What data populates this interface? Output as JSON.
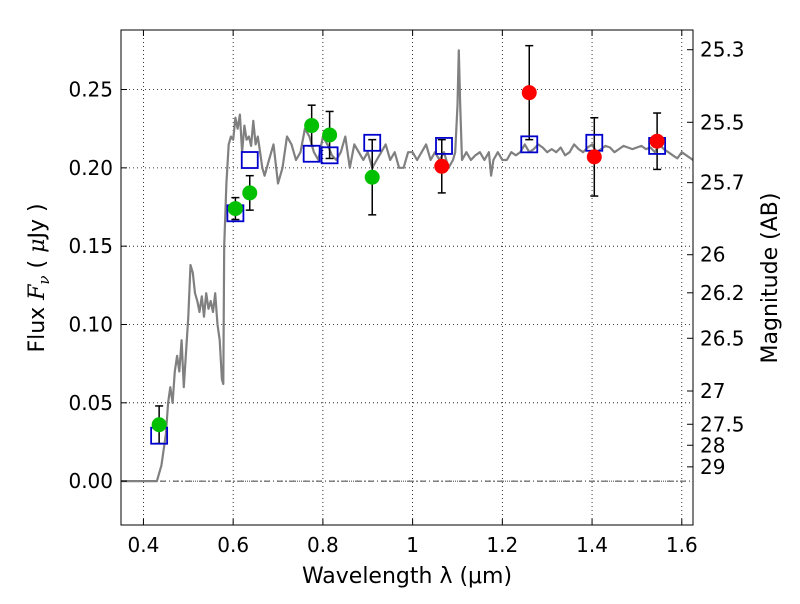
{
  "chart_data": {
    "type": "scatter",
    "title": "",
    "xlabel": "Wavelength  λ (μm)",
    "ylabel": "Flux  F_ν  ( μJy )",
    "ylabel_right": "Magnitude (AB)",
    "xlim": [
      0.35,
      1.625
    ],
    "ylim": [
      -0.028,
      0.288
    ],
    "grid": true,
    "x_ticks": [
      0.4,
      0.6,
      0.8,
      1.0,
      1.2,
      1.4,
      1.6
    ],
    "x_tick_labels": [
      "0.4",
      "0.6",
      "0.8",
      "1",
      "1.2",
      "1.4",
      "1.6"
    ],
    "y_ticks": [
      0.0,
      0.05,
      0.1,
      0.15,
      0.2,
      0.25
    ],
    "y_tick_labels": [
      "0.00",
      "0.05",
      "0.10",
      "0.15",
      "0.20",
      "0.25"
    ],
    "right_axis_ticks": [
      {
        "label": "25.3",
        "mag": 25.3
      },
      {
        "label": "25.5",
        "mag": 25.5
      },
      {
        "label": "25.7",
        "mag": 25.7
      },
      {
        "label": "26",
        "mag": 26.0
      },
      {
        "label": "26.2",
        "mag": 26.2
      },
      {
        "label": "26.5",
        "mag": 26.5
      },
      {
        "label": "27",
        "mag": 27.0
      },
      {
        "label": "27.5",
        "mag": 27.5
      },
      {
        "label": "28",
        "mag": 28.0
      },
      {
        "label": "29",
        "mag": 29.0
      }
    ],
    "colors": {
      "model": "#808080",
      "green": "#00c000",
      "red": "#ff0000",
      "square": "#0000cc",
      "error": "#000000"
    },
    "series": [
      {
        "kind": "line",
        "x": [
          0.35,
          0.43,
          0.44,
          0.45,
          0.455,
          0.46,
          0.465,
          0.47,
          0.475,
          0.48,
          0.485,
          0.49,
          0.5,
          0.505,
          0.51,
          0.515,
          0.52,
          0.525,
          0.53,
          0.535,
          0.54,
          0.545,
          0.55,
          0.555,
          0.56,
          0.565,
          0.57,
          0.575,
          0.578,
          0.58,
          0.585,
          0.59,
          0.595,
          0.6,
          0.605,
          0.61,
          0.615,
          0.62,
          0.625,
          0.63,
          0.635,
          0.64,
          0.645,
          0.65,
          0.655,
          0.66,
          0.665,
          0.67,
          0.68,
          0.69,
          0.7,
          0.71,
          0.72,
          0.73,
          0.74,
          0.75,
          0.76,
          0.77,
          0.78,
          0.79,
          0.8,
          0.81,
          0.82,
          0.83,
          0.84,
          0.85,
          0.86,
          0.87,
          0.88,
          0.89,
          0.9,
          0.91,
          0.92,
          0.93,
          0.94,
          0.95,
          0.96,
          0.97,
          0.98,
          0.99,
          1.0,
          1.01,
          1.02,
          1.03,
          1.04,
          1.05,
          1.06,
          1.07,
          1.08,
          1.09,
          1.095,
          1.1,
          1.103,
          1.106,
          1.11,
          1.12,
          1.13,
          1.14,
          1.15,
          1.16,
          1.17,
          1.175,
          1.18,
          1.19,
          1.2,
          1.21,
          1.22,
          1.23,
          1.24,
          1.25,
          1.26,
          1.27,
          1.28,
          1.29,
          1.3,
          1.31,
          1.32,
          1.33,
          1.34,
          1.35,
          1.36,
          1.37,
          1.38,
          1.39,
          1.4,
          1.41,
          1.42,
          1.43,
          1.44,
          1.45,
          1.46,
          1.47,
          1.48,
          1.49,
          1.5,
          1.51,
          1.52,
          1.53,
          1.54,
          1.55,
          1.56,
          1.57,
          1.58,
          1.59,
          1.6,
          1.61,
          1.625
        ],
        "y": [
          0.0,
          0.0,
          0.01,
          0.03,
          0.05,
          0.06,
          0.05,
          0.07,
          0.08,
          0.07,
          0.09,
          0.06,
          0.105,
          0.138,
          0.133,
          0.12,
          0.115,
          0.108,
          0.118,
          0.105,
          0.12,
          0.11,
          0.115,
          0.108,
          0.12,
          0.1,
          0.09,
          0.065,
          0.062,
          0.15,
          0.19,
          0.215,
          0.22,
          0.218,
          0.232,
          0.225,
          0.234,
          0.21,
          0.227,
          0.218,
          0.22,
          0.214,
          0.23,
          0.215,
          0.22,
          0.21,
          0.2,
          0.195,
          0.205,
          0.215,
          0.19,
          0.2,
          0.22,
          0.215,
          0.205,
          0.21,
          0.225,
          0.22,
          0.21,
          0.205,
          0.22,
          0.215,
          0.208,
          0.205,
          0.21,
          0.22,
          0.2,
          0.215,
          0.21,
          0.205,
          0.21,
          0.2,
          0.205,
          0.21,
          0.215,
          0.205,
          0.21,
          0.2,
          0.2,
          0.21,
          0.21,
          0.205,
          0.21,
          0.215,
          0.205,
          0.21,
          0.205,
          0.21,
          0.2,
          0.205,
          0.21,
          0.24,
          0.275,
          0.24,
          0.205,
          0.21,
          0.205,
          0.208,
          0.21,
          0.205,
          0.21,
          0.195,
          0.205,
          0.21,
          0.205,
          0.205,
          0.21,
          0.208,
          0.21,
          0.215,
          0.21,
          0.212,
          0.215,
          0.213,
          0.21,
          0.212,
          0.21,
          0.213,
          0.208,
          0.21,
          0.215,
          0.212,
          0.21,
          0.213,
          0.215,
          0.21,
          0.212,
          0.214,
          0.213,
          0.21,
          0.212,
          0.214,
          0.213,
          0.212,
          0.213,
          0.214,
          0.212,
          0.213,
          0.21,
          0.215,
          0.212,
          0.21,
          0.208,
          0.206,
          0.21,
          0.208,
          0.205
        ]
      },
      {
        "kind": "scatter",
        "marker": "square",
        "x": [
          0.435,
          0.605,
          0.637,
          0.775,
          0.815,
          0.91,
          1.07,
          1.26,
          1.405,
          1.545
        ],
        "y": [
          0.029,
          0.171,
          0.205,
          0.209,
          0.208,
          0.216,
          0.214,
          0.215,
          0.216,
          0.214
        ]
      },
      {
        "kind": "scatter",
        "marker": "circle",
        "color": "green",
        "x": [
          0.435,
          0.605,
          0.637,
          0.775,
          0.815,
          0.91
        ],
        "y": [
          0.036,
          0.174,
          0.184,
          0.227,
          0.221,
          0.194
        ],
        "yerr": [
          0.012,
          0.007,
          0.011,
          0.013,
          0.015,
          0.024
        ]
      },
      {
        "kind": "scatter",
        "marker": "circle",
        "color": "red",
        "x": [
          1.065,
          1.26,
          1.405,
          1.545
        ],
        "y": [
          0.201,
          0.248,
          0.207,
          0.217
        ],
        "yerr": [
          0.017,
          0.03,
          0.025,
          0.018
        ]
      }
    ],
    "reference_line": {
      "y": 0.0,
      "style": "dash-dot"
    }
  }
}
